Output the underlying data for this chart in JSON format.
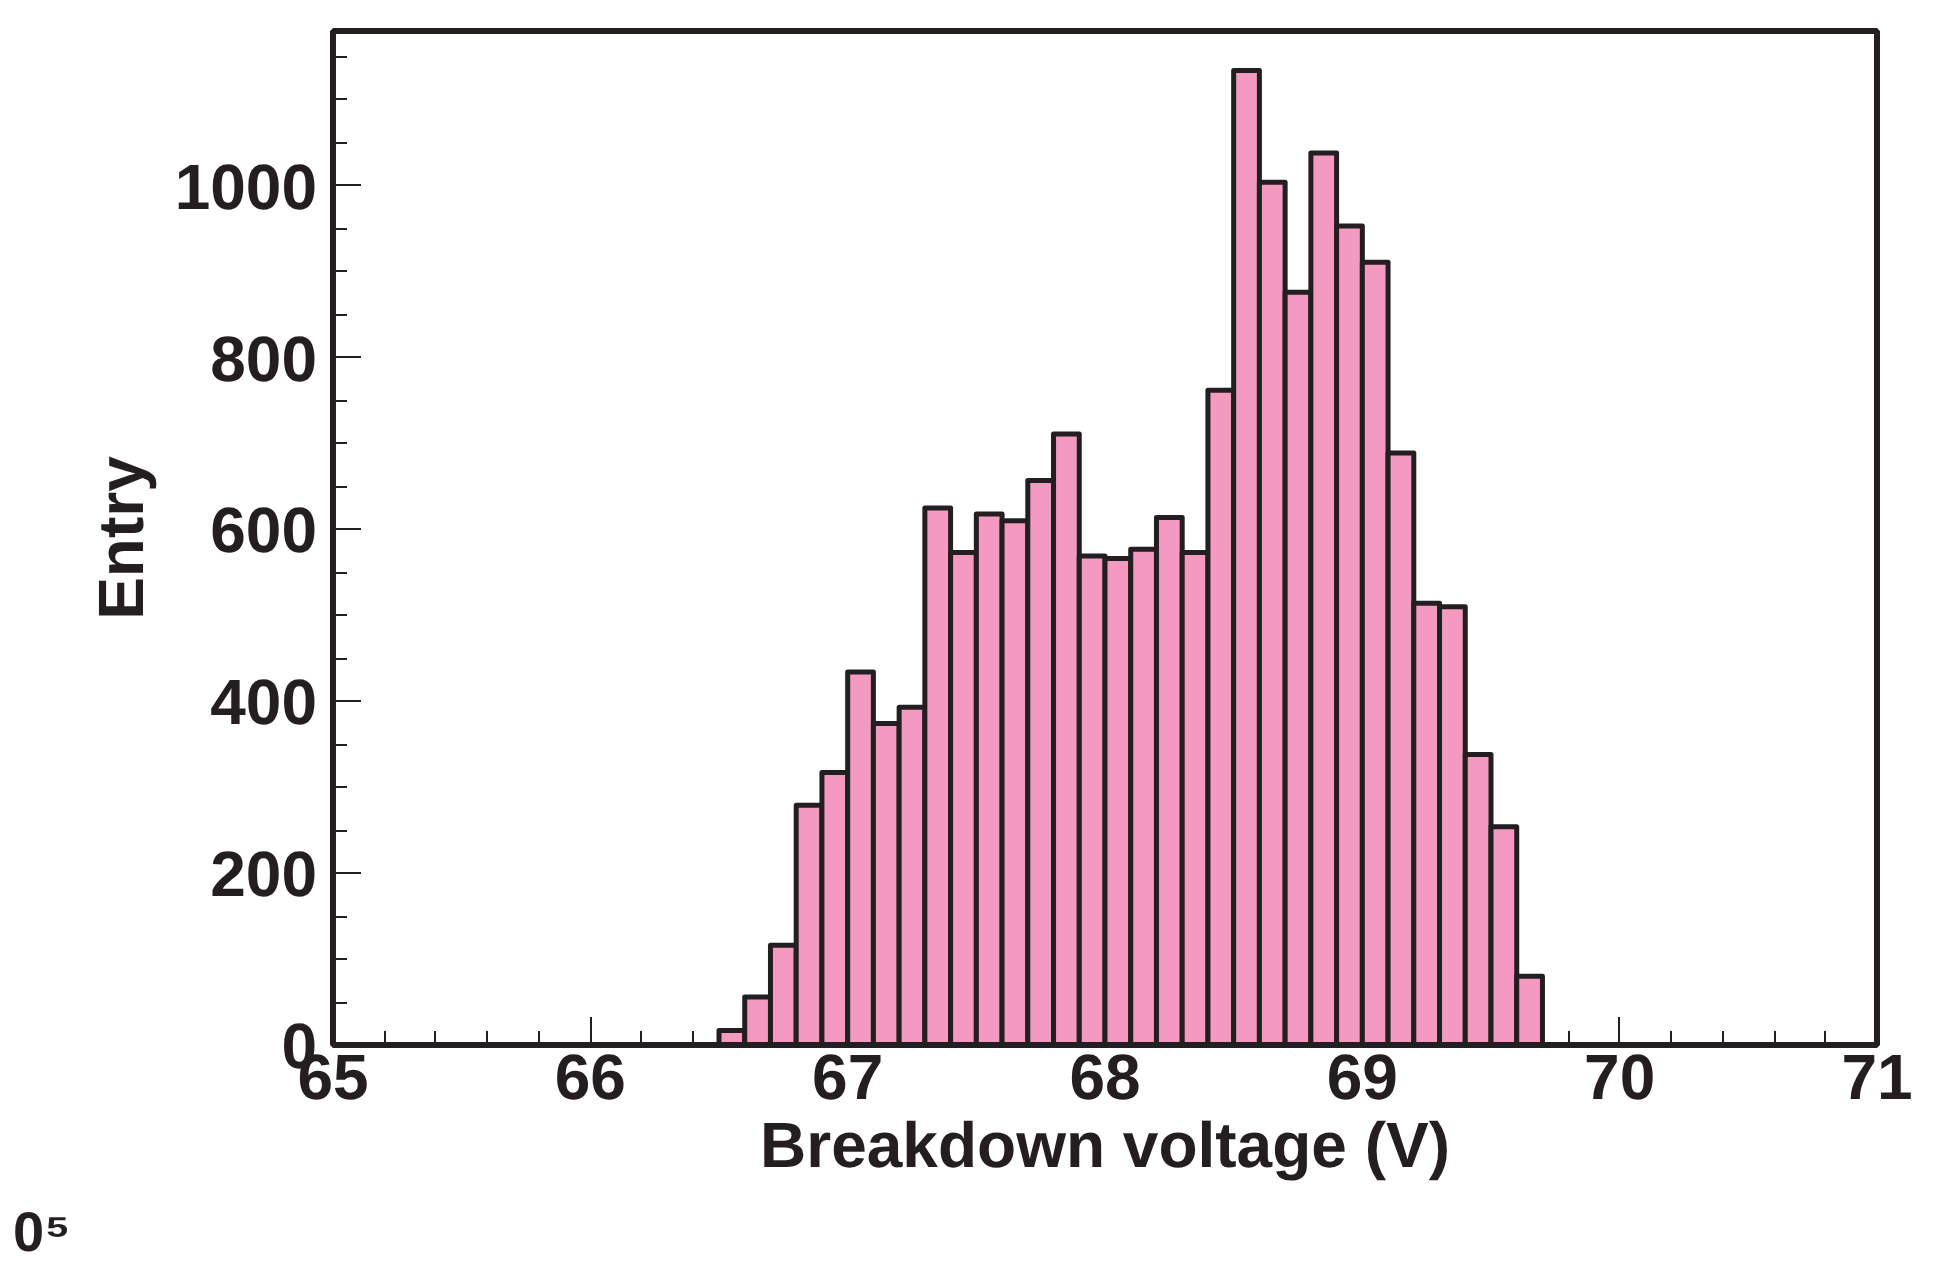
{
  "chart_data": {
    "type": "histogram",
    "xlabel": "Breakdown voltage (V)",
    "ylabel": "Entry",
    "bins": [
      66.5,
      66.6,
      66.7,
      66.8,
      66.9,
      67.0,
      67.1,
      67.2,
      67.3,
      67.4,
      67.5,
      67.6,
      67.7,
      67.8,
      67.9,
      68.0,
      68.1,
      68.2,
      68.3,
      68.4,
      68.5,
      68.6,
      68.7,
      68.8,
      68.9,
      69.0,
      69.1,
      69.2,
      69.3,
      69.4,
      69.5,
      69.6,
      69.7
    ],
    "values": [
      17,
      56,
      116,
      279,
      317,
      434,
      374,
      393,
      625,
      573,
      618,
      610,
      657,
      711,
      569,
      566,
      577,
      614,
      573,
      762,
      1134,
      1004,
      876,
      1038,
      953,
      911,
      689,
      514,
      510,
      338,
      254,
      80
    ],
    "color": "#f49ac1",
    "xlim": [
      65,
      71
    ],
    "xticks": [
      65,
      66,
      67,
      68,
      69,
      70,
      71
    ],
    "ylim": [
      0,
      1180
    ],
    "yticks": [
      0,
      200,
      400,
      600,
      800,
      1000
    ],
    "grid": false,
    "annotations": [
      "0⁵"
    ]
  }
}
